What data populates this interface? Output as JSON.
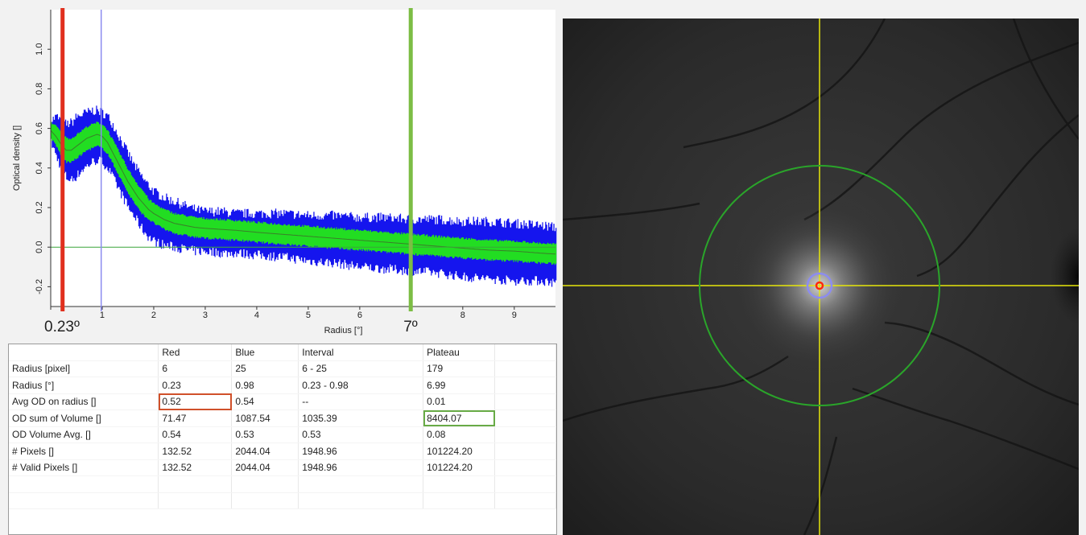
{
  "chart_data": {
    "type": "area",
    "xlabel": "Radius [°]",
    "ylabel": "Optical density []",
    "xlim": [
      0,
      9.8
    ],
    "ylim": [
      -0.3,
      1.2
    ],
    "x_ticks": [
      0,
      1,
      2,
      3,
      4,
      5,
      6,
      7,
      8,
      9
    ],
    "x_tick_labels": [
      "",
      "1",
      "2",
      "3",
      "4",
      "5",
      "6",
      "",
      "8",
      "9"
    ],
    "y_ticks": [
      -0.2,
      0.0,
      0.2,
      0.4,
      0.6,
      0.8,
      1.0
    ],
    "y_tick_labels": [
      "-0.2",
      "0.0",
      "0.2",
      "0.4",
      "0.6",
      "0.8",
      "1.0"
    ],
    "grid": false,
    "zero_line": 0.0,
    "markers": [
      {
        "name": "red",
        "x": 0.23,
        "label": "0.23º",
        "color": "#e0301e"
      },
      {
        "name": "blue",
        "x": 0.98,
        "label": "",
        "color": "#8c8cf0"
      },
      {
        "name": "plateau",
        "x": 6.99,
        "label": "7º",
        "color": "#7cbd44"
      }
    ],
    "series": [
      {
        "role": "mean",
        "color": "#3b7d2a",
        "x": [
          0,
          0.1,
          0.2,
          0.3,
          0.4,
          0.5,
          0.6,
          0.7,
          0.8,
          0.9,
          1.0,
          1.1,
          1.2,
          1.3,
          1.4,
          1.5,
          1.6,
          1.7,
          1.8,
          1.9,
          2.0,
          2.2,
          2.4,
          2.6,
          2.8,
          3.0,
          3.3,
          3.6,
          4.0,
          4.5,
          5.0,
          5.5,
          6.0,
          6.5,
          7.0,
          7.5,
          8.0,
          8.5,
          9.0,
          9.5,
          9.8
        ],
        "y": [
          0.59,
          0.56,
          0.52,
          0.49,
          0.49,
          0.51,
          0.53,
          0.55,
          0.56,
          0.57,
          0.56,
          0.53,
          0.48,
          0.43,
          0.38,
          0.33,
          0.29,
          0.25,
          0.22,
          0.19,
          0.17,
          0.14,
          0.12,
          0.11,
          0.1,
          0.095,
          0.09,
          0.085,
          0.075,
          0.065,
          0.055,
          0.045,
          0.035,
          0.025,
          0.015,
          0.005,
          -0.005,
          -0.015,
          -0.02,
          -0.03,
          -0.035
        ]
      },
      {
        "role": "std-band",
        "color": "#22dd22",
        "x": [
          0,
          0.1,
          0.2,
          0.3,
          0.4,
          0.5,
          0.6,
          0.7,
          0.8,
          0.9,
          1.0,
          1.1,
          1.2,
          1.3,
          1.4,
          1.5,
          1.6,
          1.7,
          1.8,
          1.9,
          2.0,
          2.2,
          2.4,
          2.6,
          2.8,
          3.0,
          3.3,
          3.6,
          4.0,
          4.5,
          5.0,
          5.5,
          6.0,
          6.5,
          7.0,
          7.5,
          8.0,
          8.5,
          9.0,
          9.5,
          9.8
        ],
        "y_low": [
          0.55,
          0.51,
          0.46,
          0.43,
          0.43,
          0.45,
          0.47,
          0.49,
          0.5,
          0.51,
          0.5,
          0.47,
          0.42,
          0.37,
          0.32,
          0.27,
          0.23,
          0.19,
          0.16,
          0.14,
          0.12,
          0.09,
          0.07,
          0.06,
          0.05,
          0.045,
          0.04,
          0.035,
          0.025,
          0.015,
          0.005,
          -0.005,
          -0.015,
          -0.025,
          -0.035,
          -0.045,
          -0.055,
          -0.065,
          -0.07,
          -0.08,
          -0.085
        ],
        "y_high": [
          0.63,
          0.61,
          0.58,
          0.55,
          0.55,
          0.57,
          0.59,
          0.61,
          0.62,
          0.63,
          0.62,
          0.59,
          0.54,
          0.49,
          0.44,
          0.39,
          0.35,
          0.31,
          0.28,
          0.24,
          0.22,
          0.19,
          0.17,
          0.16,
          0.15,
          0.145,
          0.14,
          0.135,
          0.125,
          0.115,
          0.105,
          0.095,
          0.085,
          0.075,
          0.065,
          0.055,
          0.045,
          0.035,
          0.03,
          0.02,
          0.015
        ]
      },
      {
        "role": "min-max-band",
        "color": "#1515ee",
        "x": [
          0,
          0.1,
          0.2,
          0.3,
          0.4,
          0.5,
          0.6,
          0.7,
          0.8,
          0.9,
          1.0,
          1.1,
          1.2,
          1.3,
          1.4,
          1.5,
          1.6,
          1.7,
          1.8,
          1.9,
          2.0,
          2.2,
          2.4,
          2.6,
          2.8,
          3.0,
          3.3,
          3.6,
          4.0,
          4.5,
          5.0,
          5.5,
          6.0,
          6.5,
          7.0,
          7.5,
          8.0,
          8.5,
          9.0,
          9.5,
          9.8
        ],
        "y_low": [
          0.53,
          0.46,
          0.4,
          0.35,
          0.34,
          0.36,
          0.39,
          0.41,
          0.43,
          0.44,
          0.43,
          0.4,
          0.35,
          0.3,
          0.25,
          0.2,
          0.16,
          0.12,
          0.08,
          0.05,
          0.03,
          0.01,
          0.0,
          -0.01,
          -0.02,
          -0.02,
          -0.03,
          -0.03,
          -0.04,
          -0.05,
          -0.07,
          -0.08,
          -0.1,
          -0.11,
          -0.12,
          -0.13,
          -0.15,
          -0.16,
          -0.17,
          -0.17,
          -0.18
        ],
        "y_high": [
          0.64,
          0.66,
          0.64,
          0.62,
          0.63,
          0.66,
          0.67,
          0.68,
          0.69,
          0.69,
          0.68,
          0.66,
          0.62,
          0.57,
          0.52,
          0.47,
          0.42,
          0.38,
          0.34,
          0.31,
          0.28,
          0.25,
          0.23,
          0.21,
          0.19,
          0.18,
          0.18,
          0.17,
          0.17,
          0.17,
          0.16,
          0.16,
          0.15,
          0.15,
          0.14,
          0.14,
          0.13,
          0.13,
          0.12,
          0.11,
          0.1
        ]
      }
    ]
  },
  "table": {
    "columns": [
      "",
      "Red",
      "Blue",
      "Interval",
      "Plateau",
      ""
    ],
    "rows": [
      {
        "label": "Radius [pixel]",
        "red": "6",
        "blue": "25",
        "interval": "6 - 25",
        "plateau": "179"
      },
      {
        "label": "Radius [°]",
        "red": "0.23",
        "blue": "0.98",
        "interval": "0.23 - 0.98",
        "plateau": "6.99"
      },
      {
        "label": "Avg OD on radius []",
        "red": "0.52",
        "blue": "0.54",
        "interval": "--",
        "plateau": "0.01"
      },
      {
        "label": "OD sum of Volume []",
        "red": "71.47",
        "blue": "1087.54",
        "interval": "1035.39",
        "plateau": "8404.07"
      },
      {
        "label": "OD Volume Avg. []",
        "red": "0.54",
        "blue": "0.53",
        "interval": "0.53",
        "plateau": "0.08"
      },
      {
        "label": "# Pixels []",
        "red": "132.52",
        "blue": "2044.04",
        "interval": "1948.96",
        "plateau": "101224.20"
      },
      {
        "label": "# Valid Pixels []",
        "red": "132.52",
        "blue": "2044.04",
        "interval": "1948.96",
        "plateau": "101224.20"
      },
      {
        "label": "",
        "red": "",
        "blue": "",
        "interval": "",
        "plateau": ""
      },
      {
        "label": "",
        "red": "",
        "blue": "",
        "interval": "",
        "plateau": ""
      }
    ]
  },
  "fundus": {
    "crosshair_color": "#e6e60a",
    "plateau_ring_color": "#2aa52a",
    "blue_ring_color": "#8c8cf0",
    "red_ring_color": "#ff2a0a"
  }
}
